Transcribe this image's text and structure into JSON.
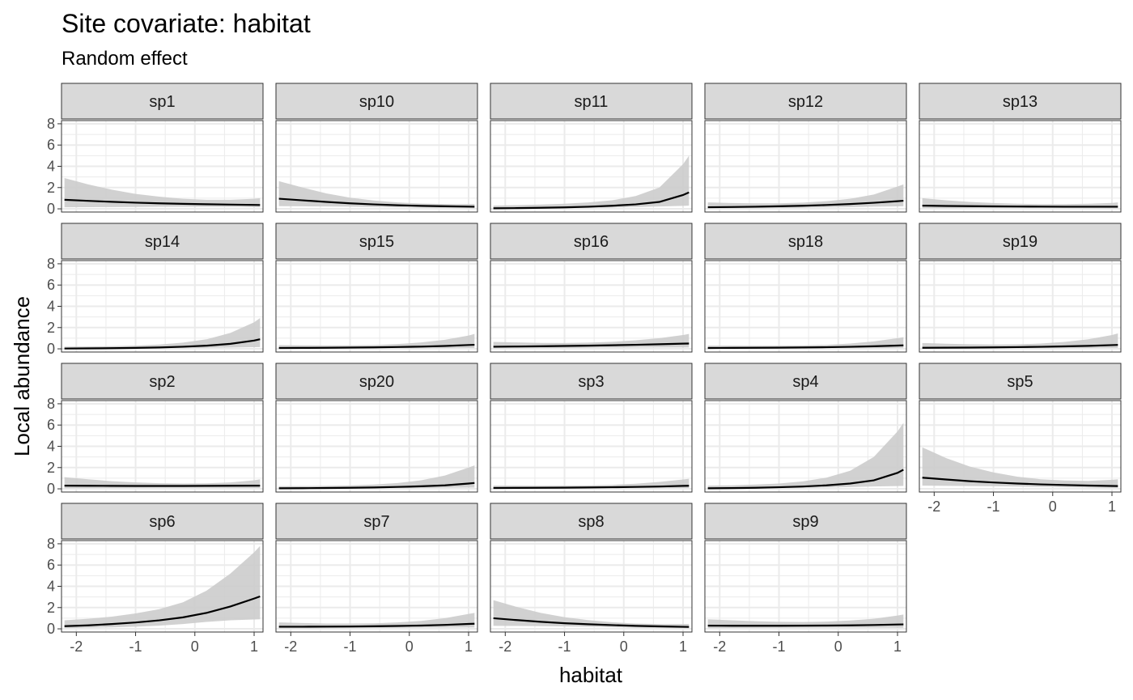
{
  "chart_data": {
    "type": "line",
    "title": "Site covariate: habitat",
    "subtitle": "Random effect",
    "xlabel": "habitat",
    "ylabel": "Local abundance",
    "xlim": [
      -2.25,
      1.15
    ],
    "ylim": [
      -0.3,
      8.3
    ],
    "x_ticks": [
      -2,
      -1,
      0,
      1
    ],
    "y_ticks": [
      0,
      2,
      4,
      6,
      8
    ],
    "x_tick_labels": [
      "-2",
      "-1",
      "0",
      "1"
    ],
    "y_tick_labels": [
      "0",
      "2",
      "4",
      "6",
      "8"
    ],
    "grid": true,
    "legend": "none",
    "band_color": "#cccccc",
    "line_color": "#000000",
    "strip_color": "#d9d9d9",
    "x": [
      -2.2,
      -1.8,
      -1.4,
      -1.0,
      -0.6,
      -0.2,
      0.2,
      0.6,
      1.0,
      1.1
    ],
    "series": [
      {
        "name": "sp1",
        "values": [
          0.85,
          0.75,
          0.66,
          0.58,
          0.52,
          0.47,
          0.43,
          0.4,
          0.37,
          0.36
        ],
        "lower": [
          0.15,
          0.16,
          0.17,
          0.18,
          0.19,
          0.19,
          0.19,
          0.18,
          0.16,
          0.15
        ],
        "upper": [
          2.9,
          2.3,
          1.8,
          1.4,
          1.15,
          0.95,
          0.85,
          0.85,
          0.95,
          1.0
        ]
      },
      {
        "name": "sp10",
        "values": [
          0.95,
          0.8,
          0.65,
          0.52,
          0.42,
          0.34,
          0.28,
          0.24,
          0.21,
          0.2
        ],
        "lower": [
          0.25,
          0.24,
          0.22,
          0.2,
          0.17,
          0.14,
          0.11,
          0.08,
          0.06,
          0.05
        ],
        "upper": [
          2.6,
          2.0,
          1.45,
          1.05,
          0.78,
          0.6,
          0.5,
          0.45,
          0.45,
          0.45
        ]
      },
      {
        "name": "sp11",
        "values": [
          0.05,
          0.07,
          0.1,
          0.14,
          0.2,
          0.29,
          0.42,
          0.65,
          1.3,
          1.55
        ],
        "lower": [
          0.01,
          0.02,
          0.03,
          0.05,
          0.08,
          0.12,
          0.17,
          0.22,
          0.28,
          0.3
        ],
        "upper": [
          0.3,
          0.35,
          0.4,
          0.48,
          0.6,
          0.8,
          1.2,
          2.0,
          4.2,
          5.0
        ]
      },
      {
        "name": "sp12",
        "values": [
          0.15,
          0.17,
          0.2,
          0.24,
          0.29,
          0.36,
          0.45,
          0.57,
          0.72,
          0.76
        ],
        "lower": [
          0.03,
          0.04,
          0.06,
          0.08,
          0.1,
          0.13,
          0.16,
          0.2,
          0.23,
          0.24
        ],
        "upper": [
          0.6,
          0.55,
          0.52,
          0.52,
          0.58,
          0.72,
          0.95,
          1.35,
          2.1,
          2.3
        ]
      },
      {
        "name": "sp13",
        "values": [
          0.3,
          0.27,
          0.25,
          0.23,
          0.22,
          0.21,
          0.2,
          0.2,
          0.2,
          0.2
        ],
        "lower": [
          0.07,
          0.07,
          0.08,
          0.08,
          0.08,
          0.08,
          0.07,
          0.06,
          0.05,
          0.05
        ],
        "upper": [
          1.0,
          0.8,
          0.65,
          0.55,
          0.48,
          0.44,
          0.44,
          0.48,
          0.56,
          0.6
        ]
      },
      {
        "name": "sp14",
        "values": [
          0.03,
          0.04,
          0.06,
          0.09,
          0.13,
          0.2,
          0.3,
          0.47,
          0.78,
          0.9
        ],
        "lower": [
          0.0,
          0.01,
          0.01,
          0.02,
          0.04,
          0.06,
          0.09,
          0.12,
          0.16,
          0.17
        ],
        "upper": [
          0.2,
          0.22,
          0.25,
          0.3,
          0.4,
          0.58,
          0.9,
          1.5,
          2.5,
          2.9
        ]
      },
      {
        "name": "sp15",
        "values": [
          0.08,
          0.09,
          0.1,
          0.12,
          0.14,
          0.17,
          0.21,
          0.27,
          0.36,
          0.38
        ],
        "lower": [
          0.01,
          0.02,
          0.02,
          0.03,
          0.04,
          0.05,
          0.06,
          0.07,
          0.08,
          0.08
        ],
        "upper": [
          0.35,
          0.33,
          0.32,
          0.33,
          0.36,
          0.45,
          0.6,
          0.85,
          1.25,
          1.4
        ]
      },
      {
        "name": "sp16",
        "values": [
          0.2,
          0.22,
          0.24,
          0.27,
          0.3,
          0.34,
          0.38,
          0.43,
          0.49,
          0.5
        ],
        "lower": [
          0.05,
          0.06,
          0.07,
          0.08,
          0.1,
          0.11,
          0.12,
          0.13,
          0.13,
          0.13
        ],
        "upper": [
          0.65,
          0.6,
          0.56,
          0.55,
          0.58,
          0.66,
          0.8,
          1.0,
          1.3,
          1.4
        ]
      },
      {
        "name": "sp18",
        "values": [
          0.08,
          0.09,
          0.1,
          0.11,
          0.13,
          0.15,
          0.19,
          0.24,
          0.31,
          0.33
        ],
        "lower": [
          0.01,
          0.02,
          0.02,
          0.03,
          0.04,
          0.05,
          0.06,
          0.07,
          0.08,
          0.08
        ],
        "upper": [
          0.3,
          0.3,
          0.29,
          0.3,
          0.32,
          0.38,
          0.5,
          0.7,
          1.0,
          1.1
        ]
      },
      {
        "name": "sp19",
        "values": [
          0.1,
          0.11,
          0.12,
          0.14,
          0.16,
          0.19,
          0.23,
          0.28,
          0.35,
          0.37
        ],
        "lower": [
          0.02,
          0.02,
          0.03,
          0.04,
          0.05,
          0.06,
          0.07,
          0.08,
          0.09,
          0.09
        ],
        "upper": [
          0.55,
          0.48,
          0.43,
          0.4,
          0.42,
          0.5,
          0.65,
          0.9,
          1.3,
          1.45
        ]
      },
      {
        "name": "sp2",
        "values": [
          0.3,
          0.29,
          0.28,
          0.27,
          0.27,
          0.27,
          0.28,
          0.29,
          0.3,
          0.3
        ],
        "lower": [
          0.06,
          0.07,
          0.08,
          0.09,
          0.1,
          0.1,
          0.1,
          0.09,
          0.08,
          0.08
        ],
        "upper": [
          1.1,
          0.9,
          0.72,
          0.6,
          0.53,
          0.5,
          0.52,
          0.6,
          0.8,
          0.9
        ]
      },
      {
        "name": "sp20",
        "values": [
          0.05,
          0.06,
          0.08,
          0.1,
          0.13,
          0.18,
          0.24,
          0.33,
          0.5,
          0.55
        ],
        "lower": [
          0.01,
          0.01,
          0.02,
          0.03,
          0.04,
          0.06,
          0.08,
          0.1,
          0.12,
          0.12
        ],
        "upper": [
          0.25,
          0.26,
          0.28,
          0.32,
          0.4,
          0.55,
          0.8,
          1.25,
          2.0,
          2.2
        ]
      },
      {
        "name": "sp3",
        "values": [
          0.08,
          0.09,
          0.1,
          0.11,
          0.13,
          0.15,
          0.18,
          0.22,
          0.28,
          0.29
        ],
        "lower": [
          0.01,
          0.02,
          0.02,
          0.03,
          0.04,
          0.05,
          0.06,
          0.07,
          0.08,
          0.08
        ],
        "upper": [
          0.3,
          0.3,
          0.29,
          0.3,
          0.32,
          0.38,
          0.48,
          0.65,
          0.88,
          0.95
        ]
      },
      {
        "name": "sp4",
        "values": [
          0.05,
          0.07,
          0.1,
          0.15,
          0.22,
          0.33,
          0.5,
          0.8,
          1.5,
          1.8
        ],
        "lower": [
          0.01,
          0.02,
          0.03,
          0.05,
          0.08,
          0.12,
          0.17,
          0.22,
          0.26,
          0.27
        ],
        "upper": [
          0.3,
          0.33,
          0.4,
          0.5,
          0.7,
          1.05,
          1.7,
          3.0,
          5.4,
          6.2
        ]
      },
      {
        "name": "sp5",
        "values": [
          1.05,
          0.88,
          0.72,
          0.6,
          0.5,
          0.42,
          0.36,
          0.31,
          0.27,
          0.26
        ],
        "lower": [
          0.3,
          0.28,
          0.26,
          0.24,
          0.21,
          0.18,
          0.15,
          0.12,
          0.09,
          0.08
        ],
        "upper": [
          3.9,
          2.9,
          2.1,
          1.55,
          1.15,
          0.9,
          0.78,
          0.75,
          0.85,
          0.9
        ]
      },
      {
        "name": "sp6",
        "values": [
          0.25,
          0.33,
          0.45,
          0.6,
          0.8,
          1.08,
          1.5,
          2.1,
          2.85,
          3.05
        ],
        "lower": [
          0.07,
          0.1,
          0.14,
          0.2,
          0.3,
          0.45,
          0.65,
          0.8,
          0.88,
          0.9
        ],
        "upper": [
          0.8,
          0.95,
          1.15,
          1.45,
          1.85,
          2.5,
          3.6,
          5.2,
          7.2,
          7.8
        ]
      },
      {
        "name": "sp7",
        "values": [
          0.2,
          0.2,
          0.21,
          0.22,
          0.24,
          0.27,
          0.31,
          0.37,
          0.46,
          0.48
        ],
        "lower": [
          0.04,
          0.05,
          0.06,
          0.07,
          0.08,
          0.1,
          0.11,
          0.12,
          0.13,
          0.13
        ],
        "upper": [
          0.6,
          0.55,
          0.5,
          0.5,
          0.52,
          0.6,
          0.75,
          1.0,
          1.4,
          1.5
        ]
      },
      {
        "name": "sp8",
        "values": [
          1.0,
          0.82,
          0.66,
          0.53,
          0.43,
          0.35,
          0.28,
          0.23,
          0.19,
          0.18
        ],
        "lower": [
          0.28,
          0.27,
          0.25,
          0.22,
          0.19,
          0.15,
          0.11,
          0.08,
          0.06,
          0.05
        ],
        "upper": [
          2.7,
          2.05,
          1.5,
          1.1,
          0.82,
          0.62,
          0.5,
          0.45,
          0.45,
          0.45
        ]
      },
      {
        "name": "sp9",
        "values": [
          0.3,
          0.29,
          0.29,
          0.29,
          0.3,
          0.31,
          0.33,
          0.36,
          0.41,
          0.42
        ],
        "lower": [
          0.07,
          0.08,
          0.09,
          0.1,
          0.11,
          0.11,
          0.11,
          0.11,
          0.1,
          0.1
        ],
        "upper": [
          0.9,
          0.8,
          0.72,
          0.66,
          0.64,
          0.68,
          0.78,
          0.95,
          1.25,
          1.35
        ]
      }
    ]
  }
}
